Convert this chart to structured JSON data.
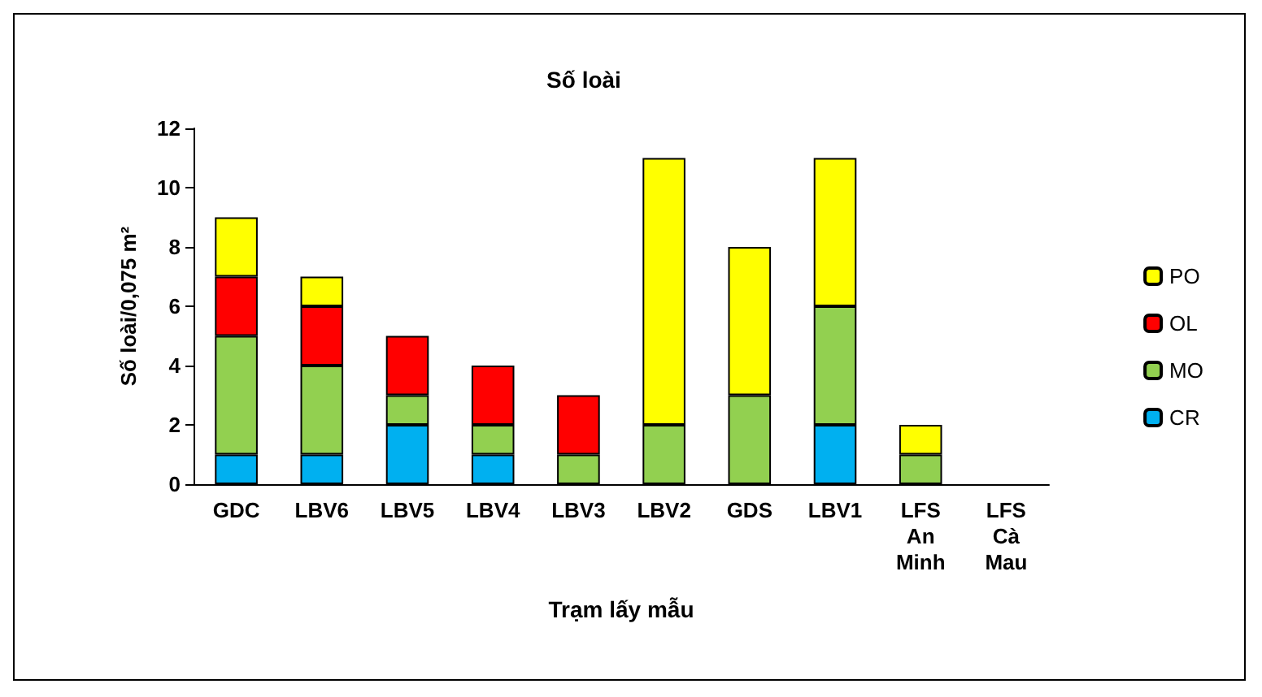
{
  "chart_data": {
    "type": "bar",
    "title": "Số loài",
    "xlabel": "Trạm lấy mẫu",
    "ylabel": "Số loài/0,075 m²",
    "categories": [
      "GDC",
      "LBV6",
      "LBV5",
      "LBV4",
      "LBV3",
      "LBV2",
      "GDS",
      "LBV1",
      "LFS\nAn\nMinh",
      "LFS\nCà\nMau"
    ],
    "stacked": true,
    "series": [
      {
        "name": "CR",
        "color": "#00b0f0",
        "values": [
          1,
          1,
          2,
          1,
          0,
          0,
          0,
          2,
          0,
          0
        ]
      },
      {
        "name": "MO",
        "color": "#92d050",
        "values": [
          4,
          3,
          1,
          1,
          1,
          2,
          3,
          4,
          1,
          0
        ]
      },
      {
        "name": "OL",
        "color": "#ff0000",
        "values": [
          2,
          2,
          2,
          2,
          2,
          0,
          0,
          0,
          0,
          0
        ]
      },
      {
        "name": "PO",
        "color": "#ffff00",
        "values": [
          2,
          1,
          0,
          0,
          0,
          9,
          5,
          5,
          1,
          0
        ]
      }
    ],
    "ylim": [
      0,
      12
    ],
    "yticks": [
      0,
      2,
      4,
      6,
      8,
      10,
      12
    ],
    "grid": false,
    "legend": "right"
  }
}
